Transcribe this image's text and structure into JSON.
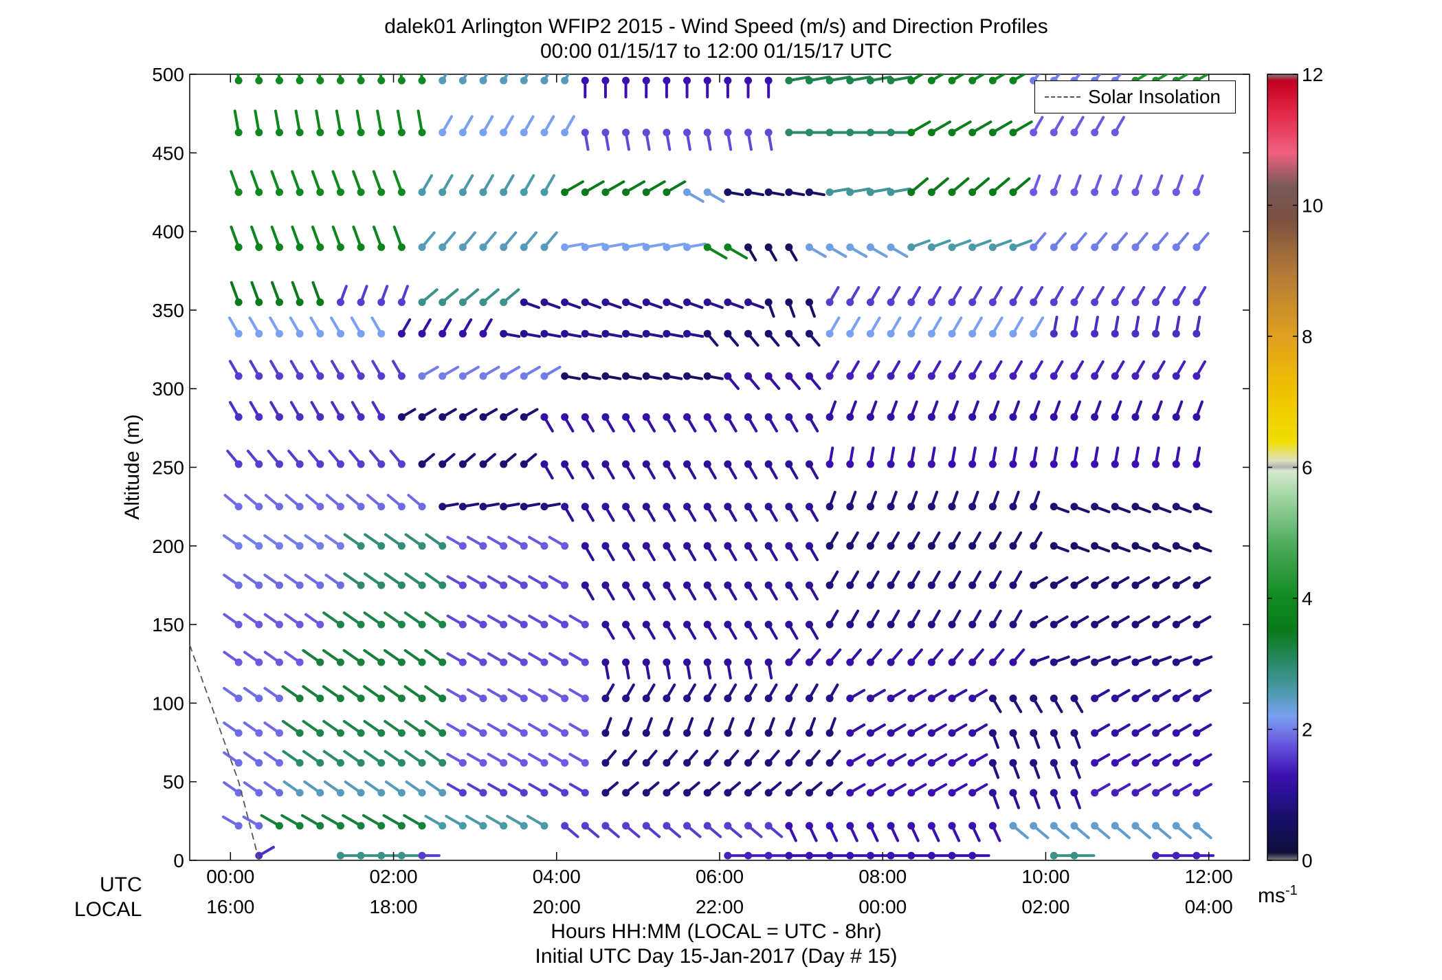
{
  "title": {
    "line1": "dalek01 Arlington WFIP2 2015 - Wind Speed (m/s) and Direction Profiles",
    "line2": "00:00 01/15/17 to 12:00 01/15/17  UTC"
  },
  "labels": {
    "utc": "UTC",
    "local": "LOCAL",
    "xlabel_line1": "Hours HH:MM  (LOCAL = UTC - 8hr)",
    "xlabel_line2": "Initial UTC Day 15-Jan-2017 (Day # 15)",
    "ylabel": "Altitude (m)",
    "colorbar_unit": "ms",
    "colorbar_unit_sup": "-1"
  },
  "legend": {
    "solar_label": "Solar Insolation"
  },
  "colors": {
    "solar_line": "#555555",
    "axis": "#000000",
    "missing": "#808080"
  },
  "chart_data": {
    "type": "wind-barb profile",
    "xlim_hours": [
      -0.5,
      12.5
    ],
    "ylim": [
      0,
      500
    ],
    "x_ticks": [
      {
        "h": 0,
        "utc": "00:00",
        "local": "16:00"
      },
      {
        "h": 2,
        "utc": "02:00",
        "local": "18:00"
      },
      {
        "h": 4,
        "utc": "04:00",
        "local": "20:00"
      },
      {
        "h": 6,
        "utc": "06:00",
        "local": "22:00"
      },
      {
        "h": 8,
        "utc": "08:00",
        "local": "00:00"
      },
      {
        "h": 10,
        "utc": "10:00",
        "local": "02:00"
      },
      {
        "h": 12,
        "utc": "12:00",
        "local": "04:00"
      }
    ],
    "y_ticks": [
      "0",
      "50",
      "100",
      "150",
      "200",
      "250",
      "300",
      "350",
      "400",
      "450",
      "500"
    ],
    "colorbar": {
      "range": [
        0,
        12
      ],
      "ticks": [
        "0",
        "2",
        "4",
        "6",
        "8",
        "10",
        "12"
      ],
      "stops": [
        {
          "v": 0,
          "c": "#808080"
        },
        {
          "v": 0.12,
          "c": "#0d0d3a"
        },
        {
          "v": 0.7,
          "c": "#1a1070"
        },
        {
          "v": 1.3,
          "c": "#3a10b0"
        },
        {
          "v": 1.8,
          "c": "#6a5ae0"
        },
        {
          "v": 2.2,
          "c": "#7aa0f0"
        },
        {
          "v": 2.6,
          "c": "#4a9aa8"
        },
        {
          "v": 3.0,
          "c": "#2a8a6a"
        },
        {
          "v": 3.5,
          "c": "#0a7a1a"
        },
        {
          "v": 4.0,
          "c": "#108a20"
        },
        {
          "v": 4.8,
          "c": "#4aaa5a"
        },
        {
          "v": 5.6,
          "c": "#a8d8a8"
        },
        {
          "v": 5.95,
          "c": "#d8e8d0"
        },
        {
          "v": 6.0,
          "c": "#b0b0b0"
        },
        {
          "v": 6.1,
          "c": "#e0e0c0"
        },
        {
          "v": 6.4,
          "c": "#f0e000"
        },
        {
          "v": 7.2,
          "c": "#f0c000"
        },
        {
          "v": 8.0,
          "c": "#e0a020"
        },
        {
          "v": 9.0,
          "c": "#b07838"
        },
        {
          "v": 9.8,
          "c": "#7a5040"
        },
        {
          "v": 10.3,
          "c": "#7a5a5a"
        },
        {
          "v": 10.8,
          "c": "#f06080"
        },
        {
          "v": 11.5,
          "c": "#e02040"
        },
        {
          "v": 11.9,
          "c": "#c00020"
        },
        {
          "v": 12,
          "c": "#808080"
        }
      ]
    },
    "solar_insolation": [
      {
        "h": -0.5,
        "alt": 137
      },
      {
        "h": 0.1,
        "alt": 50
      },
      {
        "h": 0.25,
        "alt": 20
      },
      {
        "h": 0.35,
        "alt": 0
      }
    ],
    "altitudes": [
      496,
      463,
      425,
      390,
      355,
      335,
      308,
      282,
      252,
      225,
      200,
      175,
      150,
      126,
      103,
      81,
      62,
      43,
      22,
      3
    ],
    "time_range": [
      0.1,
      11.9
    ],
    "time_step": 0.25,
    "profiles": [
      {
        "segments": [
          [
            0.1,
            2.4,
            4.0,
            -5
          ],
          [
            2.4,
            4.3,
            2.5,
            30
          ],
          [
            4.3,
            6.6,
            1.3,
            180
          ],
          [
            6.6,
            8.2,
            3.2,
            80
          ],
          [
            8.2,
            9.8,
            3.8,
            60
          ],
          [
            9.8,
            11.0,
            2.0,
            40
          ],
          [
            11.0,
            11.9,
            4.2,
            60
          ]
        ]
      },
      {
        "segments": [
          [
            0.1,
            2.4,
            3.9,
            -10
          ],
          [
            2.4,
            4.3,
            2.2,
            30
          ],
          [
            4.3,
            6.6,
            1.7,
            170
          ],
          [
            6.6,
            8.2,
            3.0,
            90
          ],
          [
            8.2,
            9.8,
            3.6,
            60
          ],
          [
            9.8,
            11.0,
            1.8,
            30
          ]
        ]
      },
      {
        "segments": [
          [
            0.1,
            2.2,
            4.0,
            -20
          ],
          [
            2.2,
            4.0,
            2.6,
            30
          ],
          [
            4.0,
            5.4,
            3.5,
            60
          ],
          [
            5.4,
            6.0,
            2.3,
            120
          ],
          [
            6.0,
            7.2,
            0.6,
            100
          ],
          [
            7.2,
            8.2,
            2.7,
            80
          ],
          [
            8.2,
            9.8,
            3.5,
            50
          ],
          [
            9.8,
            11.9,
            1.8,
            20
          ]
        ]
      },
      {
        "segments": [
          [
            0.1,
            2.2,
            3.8,
            -20
          ],
          [
            2.2,
            4.0,
            2.5,
            40
          ],
          [
            4.0,
            5.7,
            2.2,
            80
          ],
          [
            5.7,
            6.2,
            3.8,
            120
          ],
          [
            6.2,
            7.0,
            0.5,
            150
          ],
          [
            7.0,
            8.3,
            2.3,
            120
          ],
          [
            8.3,
            9.8,
            2.6,
            70
          ],
          [
            9.8,
            11.9,
            2.0,
            40
          ]
        ]
      },
      {
        "segments": [
          [
            0.1,
            1.3,
            3.5,
            -20
          ],
          [
            1.3,
            2.3,
            1.6,
            20
          ],
          [
            2.3,
            3.5,
            2.8,
            50
          ],
          [
            3.5,
            6.5,
            1.0,
            110
          ],
          [
            6.5,
            7.2,
            0.6,
            160
          ],
          [
            7.2,
            11.9,
            1.6,
            30
          ]
        ]
      },
      {
        "segments": [
          [
            0.1,
            2.0,
            2.2,
            -30
          ],
          [
            2.0,
            3.3,
            1.2,
            30
          ],
          [
            3.3,
            5.7,
            1.0,
            100
          ],
          [
            5.7,
            7.2,
            0.7,
            140
          ],
          [
            7.2,
            10.0,
            2.2,
            30
          ],
          [
            10.0,
            11.9,
            1.5,
            10
          ]
        ]
      },
      {
        "segments": [
          [
            0.1,
            2.3,
            1.6,
            -30
          ],
          [
            2.3,
            3.9,
            2.0,
            60
          ],
          [
            3.9,
            6.0,
            0.6,
            100
          ],
          [
            6.0,
            7.3,
            1.2,
            140
          ],
          [
            7.3,
            11.9,
            1.4,
            30
          ]
        ]
      },
      {
        "segments": [
          [
            0.1,
            2.0,
            1.5,
            -30
          ],
          [
            2.0,
            3.8,
            0.7,
            60
          ],
          [
            3.8,
            7.3,
            1.2,
            150
          ],
          [
            7.3,
            11.9,
            1.2,
            20
          ]
        ]
      },
      {
        "segments": [
          [
            0.1,
            2.2,
            1.6,
            -40
          ],
          [
            2.2,
            3.8,
            0.7,
            50
          ],
          [
            3.8,
            7.3,
            1.1,
            150
          ],
          [
            7.3,
            11.9,
            1.3,
            10
          ]
        ]
      },
      {
        "segments": [
          [
            0.1,
            2.5,
            1.9,
            -50
          ],
          [
            2.5,
            4.0,
            0.8,
            80
          ],
          [
            4.0,
            7.3,
            1.1,
            150
          ],
          [
            7.3,
            10.0,
            0.8,
            20
          ],
          [
            10.0,
            11.9,
            0.7,
            110
          ]
        ]
      },
      {
        "segments": [
          [
            0.1,
            1.4,
            2.0,
            -55
          ],
          [
            1.4,
            2.6,
            2.9,
            -55
          ],
          [
            2.6,
            4.3,
            1.8,
            -60
          ],
          [
            4.3,
            7.3,
            1.1,
            150
          ],
          [
            7.3,
            10.0,
            0.7,
            30
          ],
          [
            10.0,
            11.9,
            0.6,
            110
          ]
        ]
      },
      {
        "segments": [
          [
            0.1,
            1.4,
            1.9,
            -55
          ],
          [
            1.4,
            2.6,
            3.0,
            -55
          ],
          [
            2.6,
            4.3,
            1.7,
            -60
          ],
          [
            4.3,
            7.3,
            1.1,
            150
          ],
          [
            7.3,
            9.8,
            0.8,
            30
          ],
          [
            9.8,
            11.9,
            0.7,
            60
          ]
        ]
      },
      {
        "segments": [
          [
            0.1,
            1.2,
            1.8,
            -55
          ],
          [
            1.2,
            2.6,
            3.2,
            -55
          ],
          [
            2.6,
            4.4,
            1.7,
            -60
          ],
          [
            4.4,
            7.3,
            1.1,
            150
          ],
          [
            7.3,
            9.8,
            0.9,
            30
          ],
          [
            9.8,
            11.9,
            0.8,
            60
          ]
        ]
      },
      {
        "segments": [
          [
            0.1,
            1.0,
            1.8,
            -55
          ],
          [
            1.0,
            2.6,
            3.3,
            -55
          ],
          [
            2.6,
            4.4,
            1.7,
            -60
          ],
          [
            4.4,
            6.8,
            1.1,
            170
          ],
          [
            6.8,
            9.8,
            1.2,
            40
          ],
          [
            9.8,
            11.9,
            0.9,
            70
          ]
        ]
      },
      {
        "segments": [
          [
            0.1,
            0.8,
            1.9,
            -55
          ],
          [
            0.8,
            2.6,
            3.3,
            -55
          ],
          [
            2.6,
            4.4,
            1.8,
            -60
          ],
          [
            4.4,
            7.4,
            0.9,
            30
          ],
          [
            7.4,
            9.2,
            1.2,
            60
          ],
          [
            9.2,
            10.4,
            0.8,
            150
          ],
          [
            10.4,
            11.9,
            1.1,
            60
          ]
        ]
      },
      {
        "segments": [
          [
            0.1,
            0.8,
            1.9,
            -55
          ],
          [
            0.8,
            2.6,
            3.2,
            -55
          ],
          [
            2.6,
            4.4,
            1.8,
            -60
          ],
          [
            4.4,
            7.4,
            0.8,
            20
          ],
          [
            7.4,
            9.2,
            1.2,
            60
          ],
          [
            9.2,
            10.4,
            0.8,
            160
          ],
          [
            10.4,
            11.9,
            1.2,
            60
          ]
        ]
      },
      {
        "segments": [
          [
            0.1,
            0.8,
            1.9,
            -55
          ],
          [
            0.8,
            2.6,
            3.0,
            -55
          ],
          [
            2.6,
            4.4,
            1.8,
            -60
          ],
          [
            4.4,
            7.4,
            0.8,
            40
          ],
          [
            7.4,
            9.2,
            1.3,
            60
          ],
          [
            9.2,
            10.4,
            0.9,
            160
          ],
          [
            10.4,
            11.9,
            1.3,
            60
          ]
        ]
      },
      {
        "segments": [
          [
            0.1,
            0.8,
            1.9,
            -55
          ],
          [
            0.8,
            2.6,
            2.5,
            -55
          ],
          [
            2.6,
            4.4,
            1.6,
            -60
          ],
          [
            4.4,
            7.4,
            0.8,
            50
          ],
          [
            7.4,
            9.2,
            1.3,
            60
          ],
          [
            9.2,
            10.4,
            1.1,
            160
          ],
          [
            10.4,
            11.9,
            1.4,
            60
          ]
        ]
      },
      {
        "segments": [
          [
            0.1,
            0.4,
            1.9,
            -60
          ],
          [
            0.6,
            2.4,
            3.3,
            -60
          ],
          [
            2.4,
            4.0,
            2.6,
            -60
          ],
          [
            4.0,
            6.8,
            1.6,
            130
          ],
          [
            6.8,
            9.4,
            1.3,
            155
          ],
          [
            9.4,
            11.9,
            2.4,
            130
          ]
        ]
      },
      {
        "segments": [
          [
            0.3,
            0.4,
            1.5,
            60
          ],
          [
            1.3,
            2.2,
            2.8,
            90
          ],
          [
            2.2,
            2.5,
            1.6,
            90
          ],
          [
            6.0,
            6.7,
            1.4,
            90
          ],
          [
            6.7,
            9.1,
            1.3,
            90
          ],
          [
            10.0,
            10.5,
            2.8,
            90
          ],
          [
            11.2,
            11.9,
            1.4,
            90
          ]
        ]
      }
    ]
  }
}
